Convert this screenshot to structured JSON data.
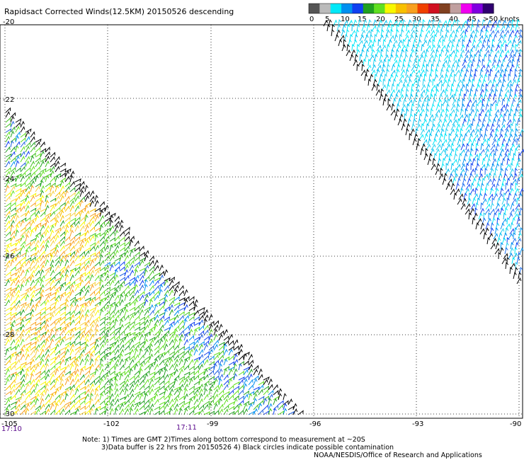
{
  "title": "Rapidsact Corrected Winds(12.5KM) 20150526 descending",
  "legend": {
    "labels": [
      "0",
      "5",
      "10",
      "15",
      "20",
      "25",
      "30",
      "35",
      "40",
      "45",
      ">50 knots"
    ],
    "colors": [
      "#555555",
      "#bbbbbb",
      "#00e8f8",
      "#0090f0",
      "#1040f0",
      "#20a020",
      "#60e020",
      "#f8f800",
      "#f8c000",
      "#f8a020",
      "#f04000",
      "#d01020",
      "#804020",
      "#c0a0a0",
      "#f000f0",
      "#8000e0",
      "#300070"
    ]
  },
  "lat_labels": [
    "-20",
    "-22",
    "-24",
    "-26",
    "-28",
    "-30"
  ],
  "lon_labels": [
    "-105",
    "-102",
    "-99",
    "-96",
    "-93",
    "-90"
  ],
  "time_labels": [
    "17:10",
    "17:11"
  ],
  "notes": {
    "line1": "Note: 1) Times are GMT 2)Times along bottom correspond to measurement at ~20S",
    "line2": "3)Data buffer is 22 hrs from 20150526 4) Black circles indicate possible contamination",
    "credit": "NOAA/NESDIS/Office of Research and Applications"
  }
}
